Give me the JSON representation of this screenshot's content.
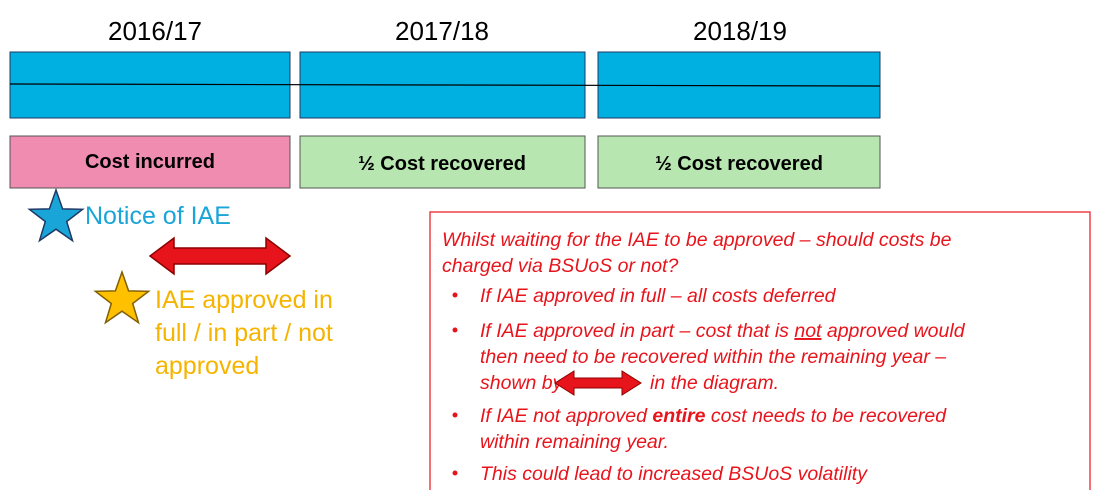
{
  "years": [
    "2016/17",
    "2017/18",
    "2018/19"
  ],
  "boxes": [
    "Cost incurred",
    "½ Cost recovered",
    "½ Cost recovered"
  ],
  "notice": "Notice of IAE",
  "approval": [
    "IAE approved in",
    "full / in part / not",
    "approved"
  ],
  "note": {
    "intro": [
      "Whilst waiting for the IAE to be approved – should costs be",
      "charged via BSUoS or not?"
    ],
    "bullet_1": "If IAE approved in full – all costs deferred",
    "bullet_2": {
      "a": "If IAE approved in part – cost that is ",
      "b": "not",
      "c": " approved would",
      "line2": "then need to be recovered within the remaining year –",
      "line3a": "shown by",
      "line3b": "in the diagram."
    },
    "bullet_3": {
      "a": "If IAE not approved ",
      "b": "entire",
      "c": " cost needs to be recovered",
      "line2": "within remaining year."
    },
    "bullet_4": "This could lead to increased BSUoS volatility"
  }
}
